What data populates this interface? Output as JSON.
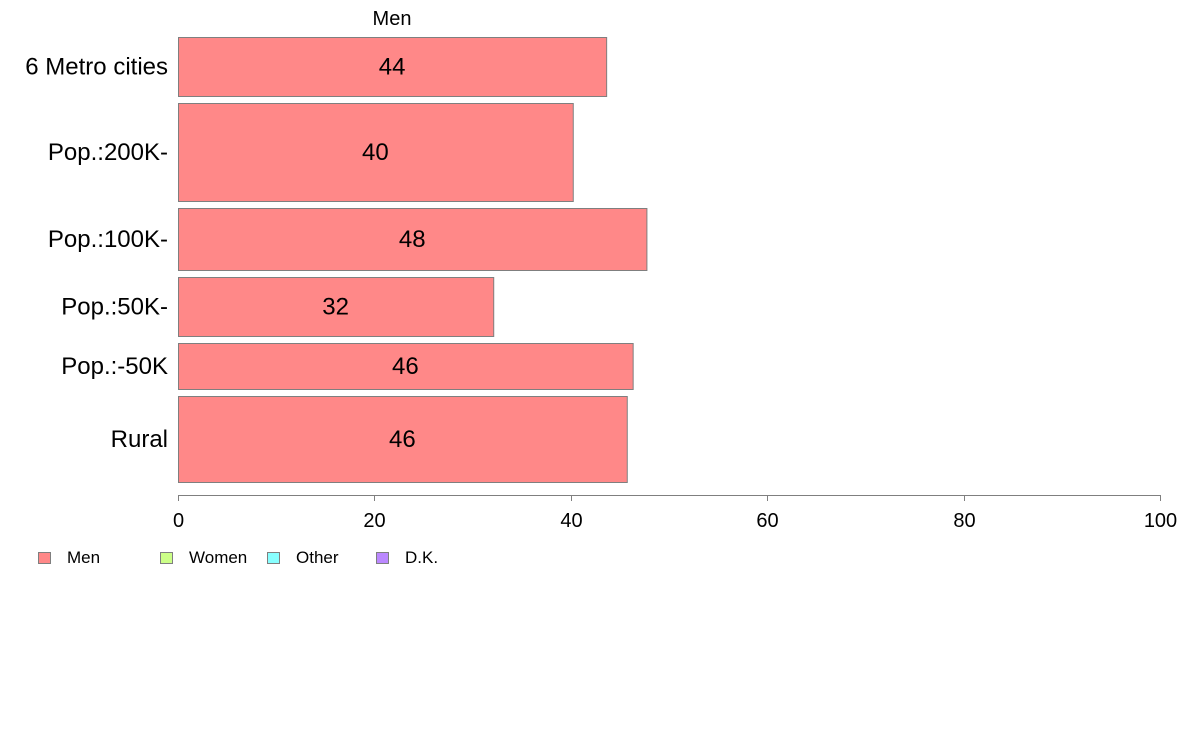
{
  "chart_data": {
    "type": "bar",
    "orientation": "horizontal",
    "title": "Men",
    "categories": [
      "6 Metro cities",
      "Pop.:200K-",
      "Pop.:100K-",
      "Pop.:50K-",
      "Pop.:-50K",
      "Rural"
    ],
    "series": [
      {
        "name": "Men",
        "values": [
          44,
          40,
          48,
          32,
          46,
          46
        ],
        "display_values": [
          43.6,
          40.2,
          47.7,
          32.1,
          46.3,
          45.7
        ],
        "color": "#ff8888"
      }
    ],
    "xlim": [
      0,
      100
    ],
    "xticks": [
      0,
      20,
      40,
      60,
      80,
      100
    ],
    "grid": false,
    "legend": {
      "placement": "bottom-left",
      "entries": [
        {
          "label": "Men",
          "color": "#ff8888"
        },
        {
          "label": "Women",
          "color": "#ccff88"
        },
        {
          "label": "Other",
          "color": "#88ffff"
        },
        {
          "label": "D.K.",
          "color": "#bb88ff"
        }
      ]
    }
  }
}
